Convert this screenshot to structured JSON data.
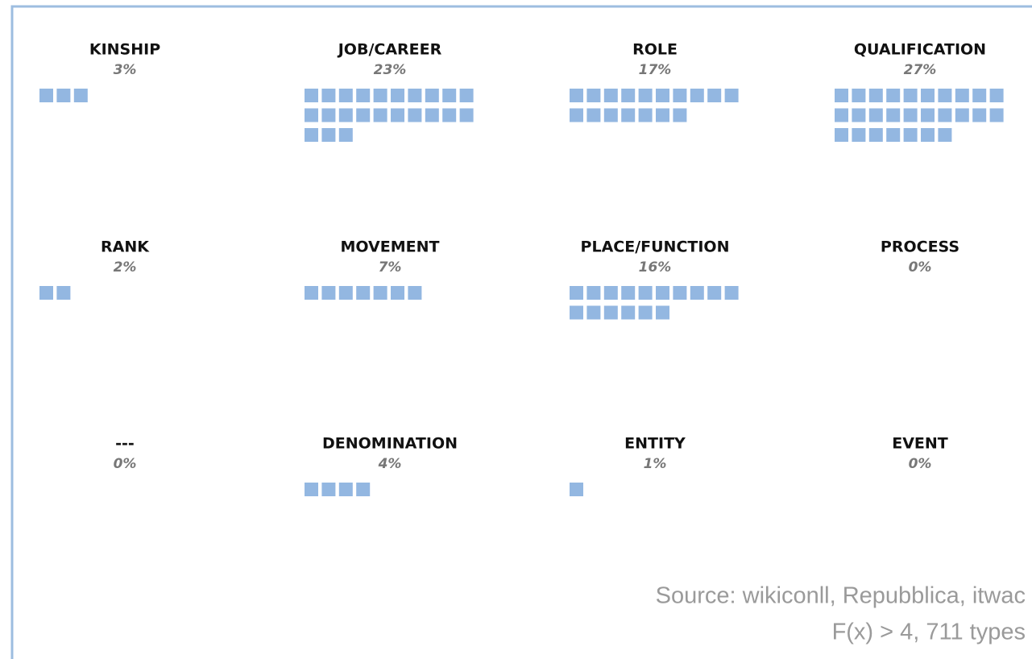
{
  "chart_data": {
    "type": "waffle",
    "categories": [
      "KINSHIP",
      "JOB/CAREER",
      "ROLE",
      "QUALIFICATION",
      "RANK",
      "MOVEMENT",
      "PLACE/FUNCTION",
      "PROCESS",
      "---",
      "DENOMINATION",
      "ENTITY",
      "EVENT"
    ],
    "values": [
      3,
      23,
      17,
      27,
      2,
      7,
      16,
      0,
      0,
      4,
      1,
      0
    ],
    "value_labels": [
      "3%",
      "23%",
      "17%",
      "27%",
      "2%",
      "7%",
      "16%",
      "0%",
      "0%",
      "4%",
      "1%",
      "0%"
    ],
    "color": "#93b7e1",
    "annotations": [
      "Source: wikiconll, Repubblica, itwac",
      "F(x) > 4, 711 types"
    ]
  }
}
